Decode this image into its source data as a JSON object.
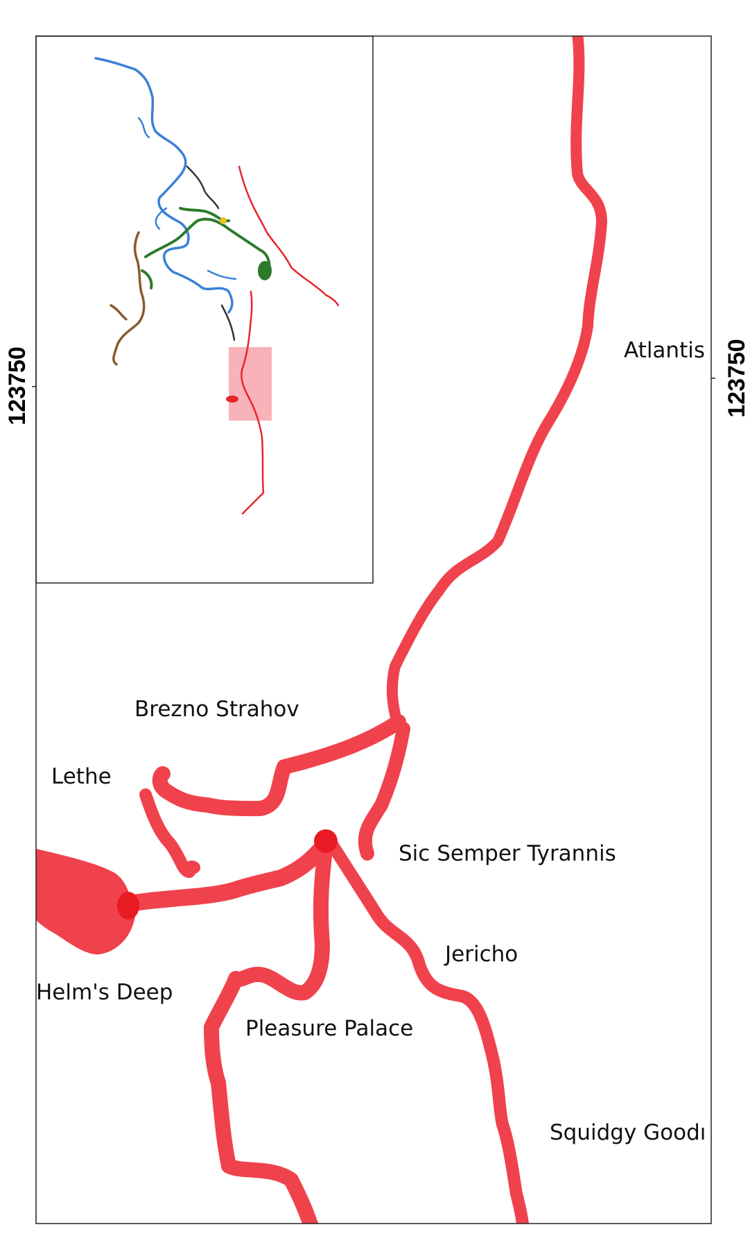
{
  "map": {
    "coordinate_label_left": "123750",
    "coordinate_label_right": "123750",
    "passage_color": "#f0424c",
    "junction_color": "#e81a24",
    "places": {
      "atlantis": "Atlantis",
      "brezno_strahov": "Brezno Strahov",
      "lethe": "Lethe",
      "sic_semper_tyrannis": "Sic Semper Tyrannis",
      "jericho": "Jericho",
      "helms_deep": "Helm's Deep",
      "pleasure_palace": "Pleasure Palace",
      "squidgy_goodness": "Squidgy Goodı"
    }
  },
  "overview_inset": {
    "highlight_color": "#f7b3b8",
    "series_colors": [
      "#3a7fd8",
      "#2a7a2a",
      "#e8242c",
      "#8a5a2e",
      "#333333",
      "#f0c020"
    ]
  }
}
